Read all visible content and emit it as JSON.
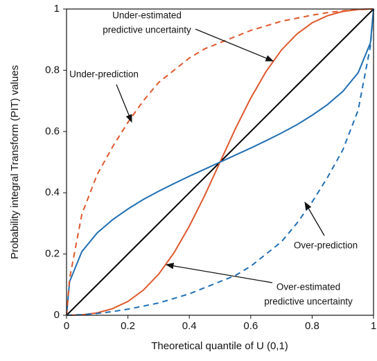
{
  "chart_data": {
    "type": "line",
    "xlabel": "Theoretical quantile of U (0,1)",
    "ylabel": "Probability integral Transform (PIT) values",
    "x": [
      0,
      0.01,
      0.05,
      0.1,
      0.15,
      0.2,
      0.25,
      0.3,
      0.35,
      0.4,
      0.45,
      0.5,
      0.55,
      0.6,
      0.65,
      0.7,
      0.75,
      0.8,
      0.85,
      0.9,
      0.95,
      0.99,
      1
    ],
    "series": [
      {
        "color": "#000000",
        "dash": false,
        "values": [
          0,
          0.01,
          0.05,
          0.1,
          0.15,
          0.2,
          0.25,
          0.3,
          0.35,
          0.4,
          0.45,
          0.5,
          0.55,
          0.6,
          0.65,
          0.7,
          0.75,
          0.8,
          0.85,
          0.9,
          0.95,
          0.99,
          1
        ]
      },
      {
        "color": "#e0562a",
        "dash": false,
        "values": [
          0,
          0,
          0.0015,
          0.0079,
          0.0216,
          0.0452,
          0.082,
          0.134,
          0.204,
          0.291,
          0.391,
          0.5,
          0.609,
          0.709,
          0.796,
          0.866,
          0.918,
          0.955,
          0.978,
          0.992,
          0.9985,
          1,
          1
        ]
      },
      {
        "color": "#1f6eb4",
        "dash": false,
        "values": [
          0,
          0.11,
          0.208,
          0.269,
          0.312,
          0.347,
          0.378,
          0.405,
          0.43,
          0.454,
          0.477,
          0.5,
          0.523,
          0.546,
          0.57,
          0.595,
          0.622,
          0.653,
          0.688,
          0.731,
          0.792,
          0.89,
          1
        ]
      },
      {
        "color": "#e0562a",
        "dash": true,
        "values": [
          0,
          0.12,
          0.33,
          0.46,
          0.55,
          0.63,
          0.7,
          0.76,
          0.8,
          0.84,
          0.87,
          0.89,
          0.91,
          0.93,
          0.945,
          0.96,
          0.97,
          0.98,
          0.988,
          0.994,
          0.998,
          0.9995,
          1
        ]
      },
      {
        "color": "#1f6eb4",
        "dash": true,
        "values": [
          0,
          0.0005,
          0.002,
          0.006,
          0.012,
          0.02,
          0.03,
          0.04,
          0.055,
          0.07,
          0.09,
          0.11,
          0.13,
          0.16,
          0.2,
          0.24,
          0.3,
          0.37,
          0.45,
          0.54,
          0.67,
          0.88,
          1
        ]
      }
    ],
    "xlim": [
      0,
      1
    ],
    "ylim": [
      0,
      1
    ],
    "xticks": [
      0,
      0.2,
      0.4,
      0.6,
      0.8,
      1
    ],
    "yticks": [
      0,
      0.2,
      0.4,
      0.6,
      0.8,
      1
    ],
    "annotations": [
      {
        "lines": [
          "Under-estimated",
          "predictive uncertainty"
        ]
      },
      {
        "lines": [
          "Under-prediction"
        ]
      },
      {
        "lines": [
          "Over-prediction"
        ]
      },
      {
        "lines": [
          "Over-estimated",
          "predictive uncertainty"
        ]
      }
    ]
  }
}
